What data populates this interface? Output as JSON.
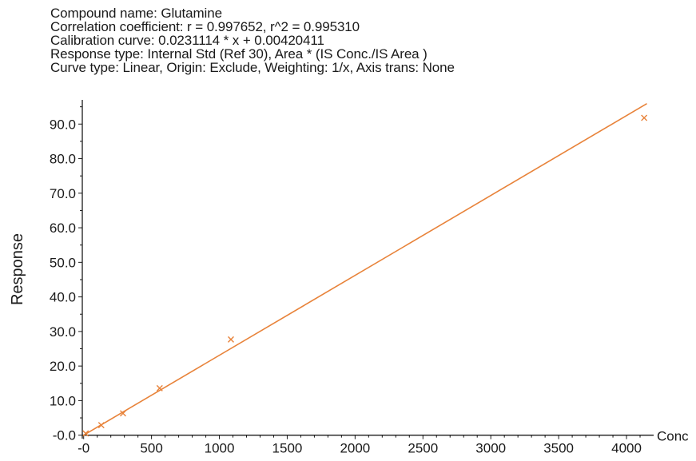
{
  "header": {
    "compound_name": "Compound name: Glutamine",
    "correlation": "Correlation coefficient: r = 0.997652, r^2 = 0.995310",
    "calibration_curve": "Calibration curve: 0.0231114 * x + 0.00420411",
    "response_type": "Response type: Internal Std (Ref 30), Area * (IS Conc./IS Area )",
    "curve_type": "Curve type: Linear, Origin: Exclude, Weighting: 1/x, Axis trans: None"
  },
  "colors": {
    "series": "#e8833a",
    "axis": "#1a1a1a"
  },
  "chart_data": {
    "type": "scatter",
    "title": "",
    "xlabel": "Conc",
    "ylabel": "Response",
    "xlim": [
      -10,
      4200
    ],
    "ylim": [
      -1,
      97
    ],
    "x_ticks": [
      0,
      500,
      1000,
      1500,
      2000,
      2500,
      3000,
      3500,
      4000
    ],
    "x_tick_labels": [
      "-0",
      "500",
      "1000",
      "1500",
      "2000",
      "2500",
      "3000",
      "3500",
      "4000"
    ],
    "y_ticks": [
      0,
      10,
      20,
      30,
      40,
      50,
      60,
      70,
      80,
      90
    ],
    "y_tick_labels": [
      "-0.0",
      "10.0",
      "20.0",
      "30.0",
      "40.0",
      "50.0",
      "60.0",
      "70.0",
      "80.0",
      "90.0"
    ],
    "grid": false,
    "series": [
      {
        "marker": "x",
        "points": [
          {
            "x": 15,
            "y": 0.5
          },
          {
            "x": 130,
            "y": 2.9
          },
          {
            "x": 290,
            "y": 6.3
          },
          {
            "x": 560,
            "y": 13.6
          },
          {
            "x": 1085,
            "y": 27.7
          },
          {
            "x": 4130,
            "y": 91.8
          }
        ]
      }
    ],
    "fit_line": {
      "slope": 0.0231114,
      "intercept": 0.00420411,
      "x_range": [
        0,
        4150
      ]
    }
  }
}
